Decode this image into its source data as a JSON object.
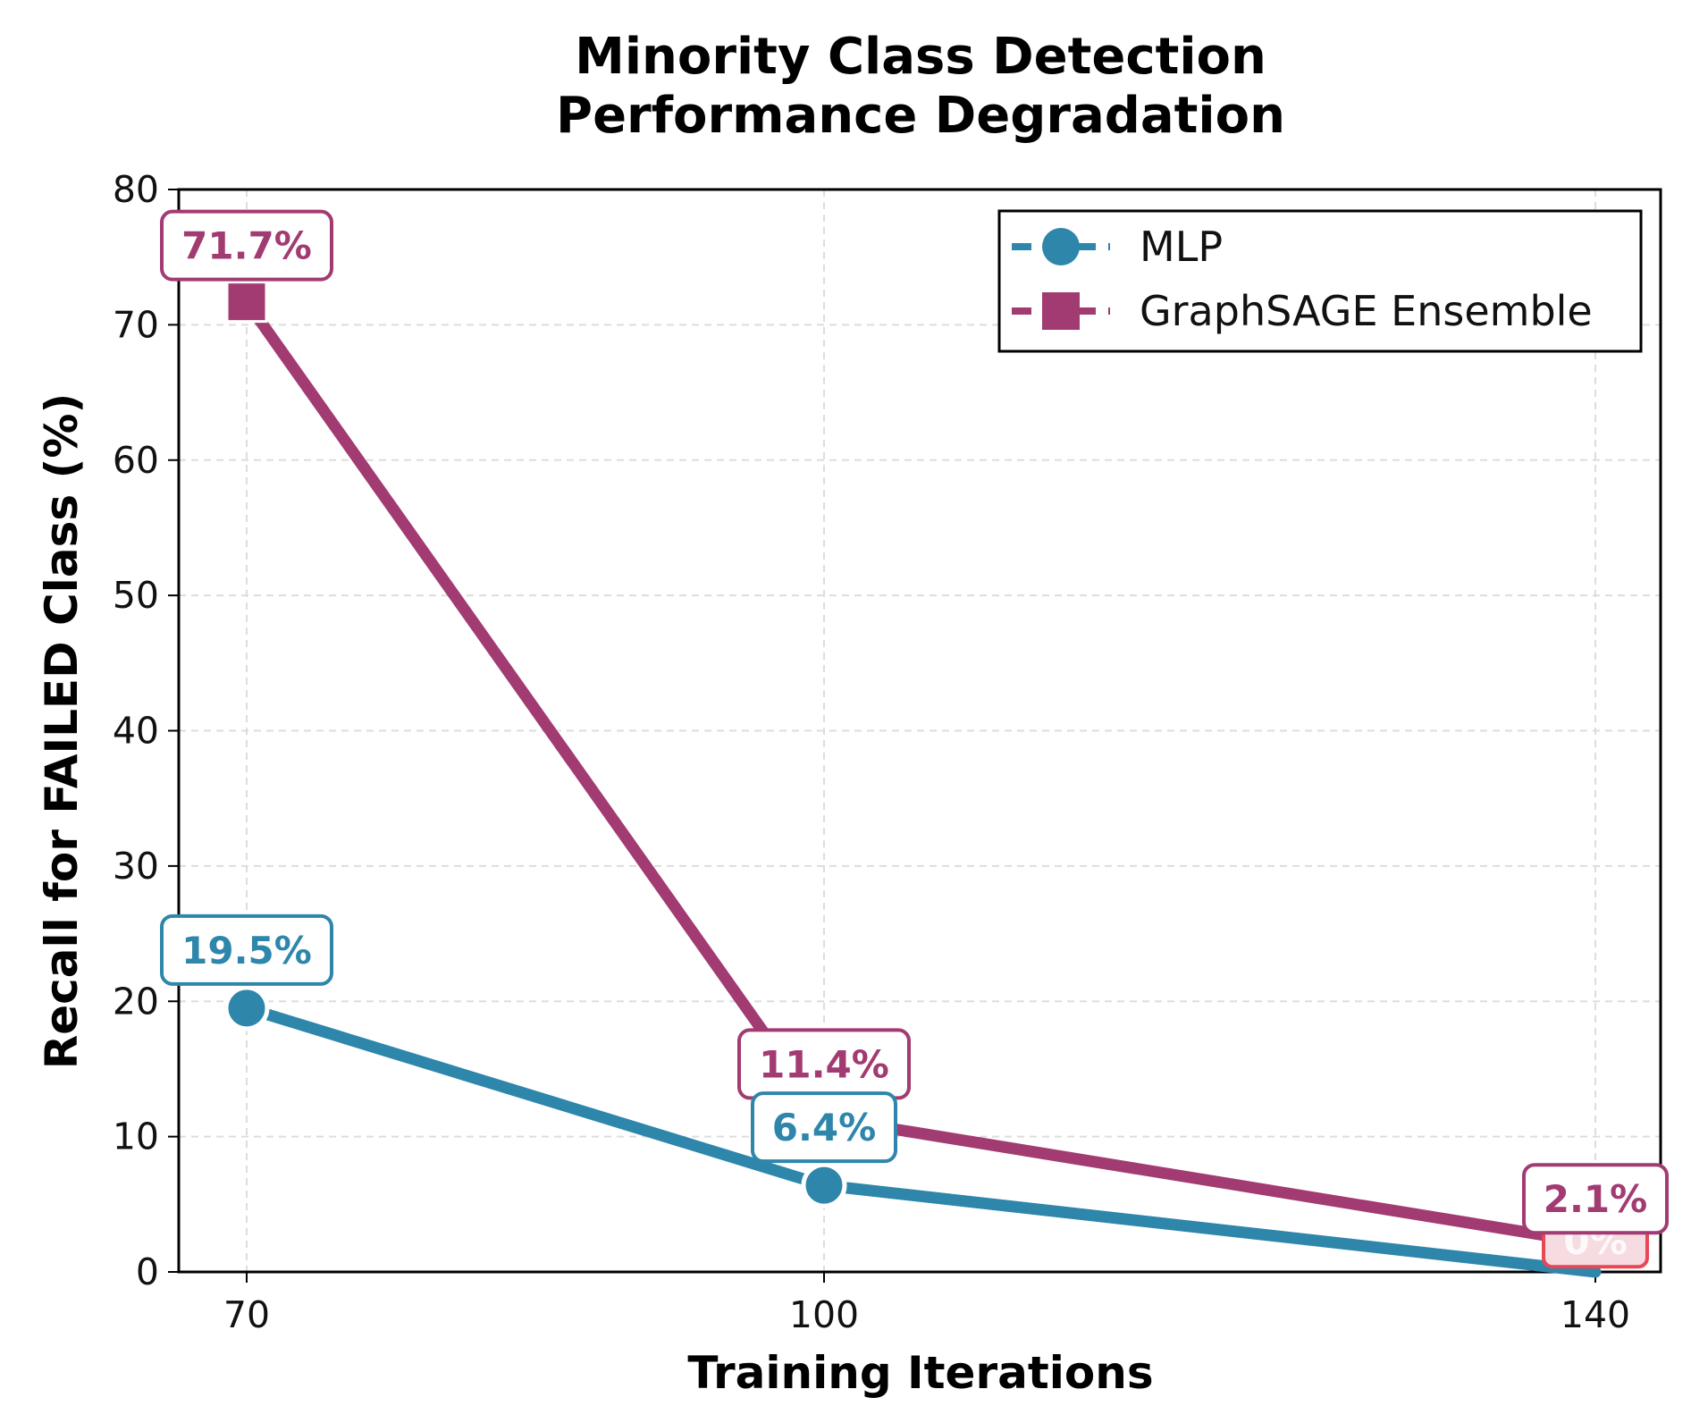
{
  "chart_data": {
    "type": "line",
    "title": [
      "Minority Class Detection",
      "Performance Degradation"
    ],
    "xlabel": "Training Iterations",
    "ylabel": "Recall for FAILED Class (%)",
    "categories": [
      "70",
      "100",
      "140"
    ],
    "x": [
      70,
      100,
      140
    ],
    "ylim": [
      0,
      80
    ],
    "yticks": [
      0,
      10,
      20,
      30,
      40,
      50,
      60,
      70,
      80
    ],
    "grid": true,
    "legend_position": "top-right",
    "series": [
      {
        "name": "MLP",
        "marker": "circle",
        "color": "#2e86ab",
        "values": [
          19.5,
          6.4,
          0.0
        ],
        "labels": [
          "19.5%",
          "6.4%",
          "0%"
        ]
      },
      {
        "name": "GraphSAGE Ensemble",
        "marker": "square",
        "color": "#a23b72",
        "values": [
          71.7,
          11.4,
          2.1
        ],
        "labels": [
          "71.7%",
          "11.4%",
          "2.1%"
        ]
      }
    ],
    "zero_highlight_color": "#e84855"
  }
}
